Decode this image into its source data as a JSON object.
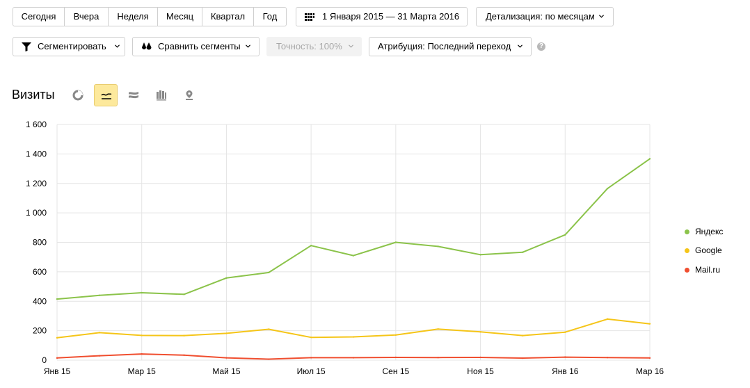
{
  "period_buttons": [
    "Сегодня",
    "Вчера",
    "Неделя",
    "Месяц",
    "Квартал",
    "Год"
  ],
  "date_range": {
    "label": "1 Января 2015 — 31 Марта 2016",
    "icon": "calendar-icon"
  },
  "detail": {
    "label": "Детализация: по месяцам"
  },
  "toolbar": {
    "segment_label": "Сегментировать",
    "compare_label": "Сравнить сегменты",
    "accuracy_label": "Точность: 100%",
    "attribution_label": "Атрибуция: Последний переход",
    "help_label": "?"
  },
  "report": {
    "title": "Визиты",
    "view_icons": [
      "pie-chart-icon",
      "line-chart-icon",
      "area-chart-icon",
      "bar-chart-icon",
      "map-icon"
    ],
    "active_view": 1
  },
  "chart_data": {
    "type": "line",
    "x": [
      "Янв 15",
      "Фев 15",
      "Мар 15",
      "Апр 15",
      "Май 15",
      "Июн 15",
      "Июл 15",
      "Авг 15",
      "Сен 15",
      "Окт 15",
      "Ноя 15",
      "Дек 15",
      "Янв 16",
      "Фев 16",
      "Мар 16"
    ],
    "x_tick_labels": [
      "Янв 15",
      "Мар 15",
      "Май 15",
      "Июл 15",
      "Сен 15",
      "Ноя 15",
      "Янв 16",
      "Мар 16"
    ],
    "y_ticks": [
      0,
      200,
      400,
      600,
      800,
      1000,
      1200,
      1400,
      1600
    ],
    "y_tick_labels": [
      "0",
      "200",
      "400",
      "600",
      "800",
      "1 000",
      "1 200",
      "1 400",
      "1 600"
    ],
    "ylim": [
      0,
      1600
    ],
    "grid": true,
    "legend": "right",
    "series": [
      {
        "name": "Яндекс",
        "color": "#8bc34a",
        "values": [
          415,
          440,
          458,
          447,
          558,
          595,
          778,
          710,
          800,
          772,
          716,
          733,
          851,
          1165,
          1367
        ]
      },
      {
        "name": "Google",
        "color": "#f5c518",
        "values": [
          152,
          187,
          168,
          167,
          182,
          210,
          155,
          158,
          171,
          211,
          192,
          167,
          190,
          279,
          247
        ]
      },
      {
        "name": "Mail.ru",
        "color": "#f04e2f",
        "values": [
          15,
          30,
          42,
          34,
          16,
          7,
          17,
          17,
          19,
          18,
          19,
          14,
          21,
          18,
          15
        ]
      }
    ]
  }
}
